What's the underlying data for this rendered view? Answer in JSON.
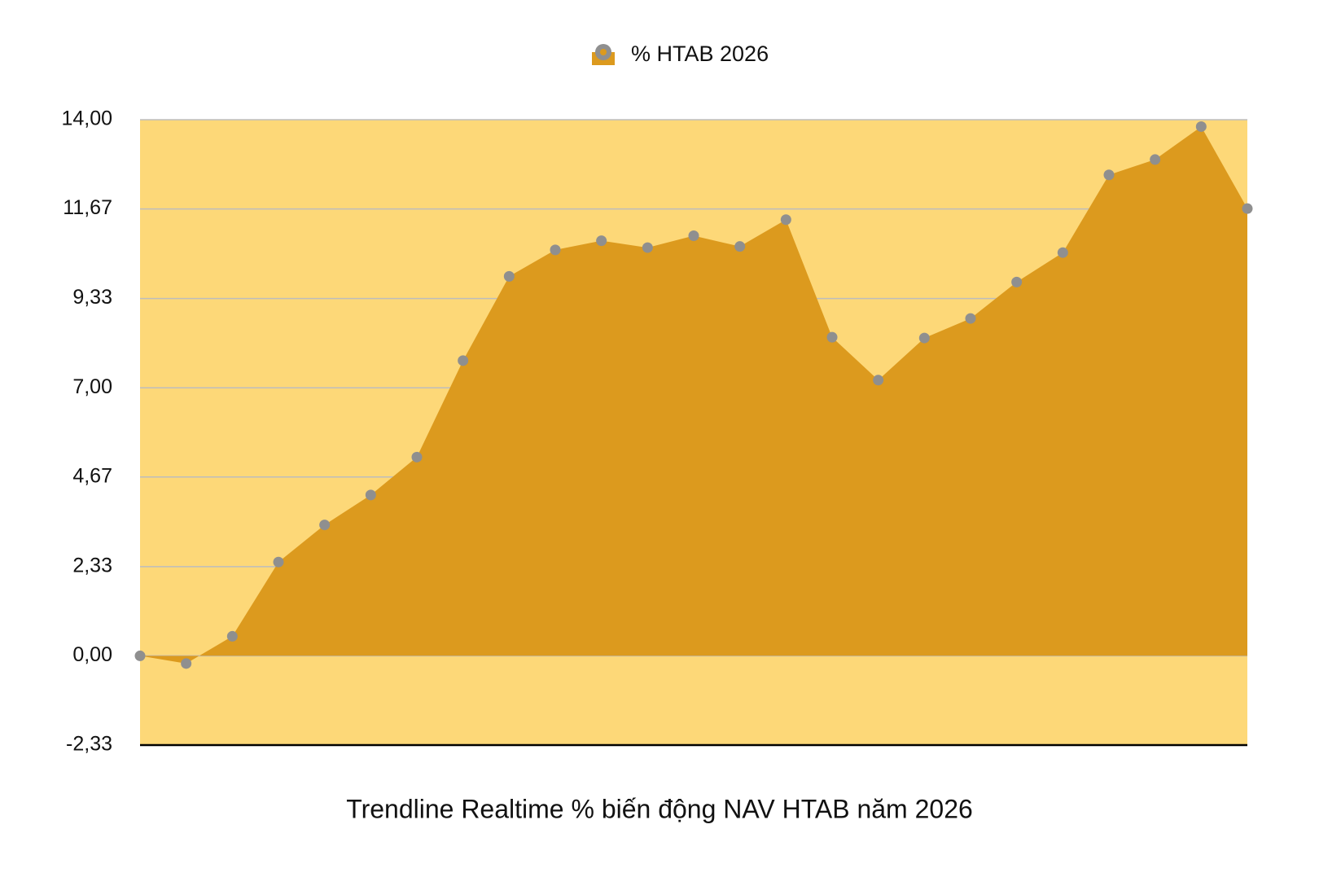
{
  "chart_data": {
    "type": "area",
    "title": "Trendline Realtime % biến động NAV HTAB năm 2026",
    "categories": [
      null,
      null,
      null,
      null,
      null,
      null,
      null,
      null,
      null,
      null,
      null,
      null,
      null,
      null,
      null,
      null,
      null,
      null,
      null,
      null,
      null,
      null,
      null,
      null,
      null
    ],
    "series": [
      {
        "name": "% HTAB 2026",
        "color": "#dc9a1e",
        "marker_color": "#8f8f8f",
        "values": [
          0,
          -0.2,
          0.51,
          2.45,
          3.42,
          4.2,
          5.19,
          7.71,
          9.91,
          10.6,
          10.84,
          10.66,
          10.97,
          10.69,
          11.39,
          8.32,
          7.2,
          8.3,
          8.81,
          9.76,
          10.53,
          12.56,
          12.96,
          13.82,
          11.68
        ]
      }
    ],
    "ylim": [
      -2.33,
      14
    ],
    "yticks": [
      {
        "value": -2.33,
        "label": "-2,33"
      },
      {
        "value": 0,
        "label": "0,00"
      },
      {
        "value": 2.33,
        "label": "2,33"
      },
      {
        "value": 4.67,
        "label": "4,67"
      },
      {
        "value": 7,
        "label": "7,00"
      },
      {
        "value": 9.33,
        "label": "9,33"
      },
      {
        "value": 11.67,
        "label": "11,67"
      },
      {
        "value": 14,
        "label": "14,00"
      }
    ],
    "grid": true,
    "plot_background": "#fdd878",
    "legend": "top"
  }
}
